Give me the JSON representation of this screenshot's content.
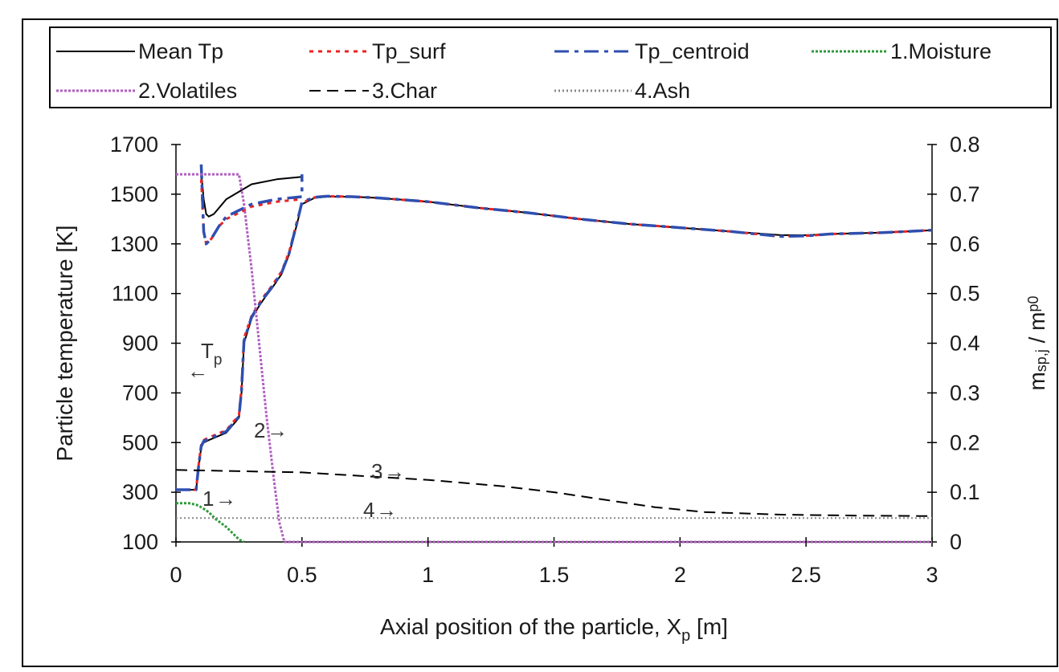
{
  "chart_data": {
    "type": "line",
    "xlabel": {
      "main": "Axial position of the particle, X",
      "sub": "p",
      "unit": " [m]"
    },
    "ylabel_left": "Particle temperature [K]",
    "ylabel_right": {
      "m1": "m",
      "sub1": "sp,j",
      "slash": " / ",
      "m2": "m",
      "sub2": "p0"
    },
    "xlim": [
      0,
      3
    ],
    "ylim_left": [
      100,
      1700
    ],
    "ylim_right": [
      0,
      0.8
    ],
    "x_ticks": [
      0,
      0.5,
      1,
      1.5,
      2,
      2.5,
      3
    ],
    "x_tick_labels": [
      "0",
      "0.5",
      "1",
      "1.5",
      "2",
      "2.5",
      "3"
    ],
    "y_left_ticks": [
      100,
      300,
      500,
      700,
      900,
      1100,
      1300,
      1500,
      1700
    ],
    "y_left_tick_labels": [
      "100",
      "300",
      "500",
      "700",
      "900",
      "1100",
      "1300",
      "1500",
      "1700"
    ],
    "y_right_ticks": [
      0,
      0.1,
      0.2,
      0.3,
      0.4,
      0.5,
      0.6,
      0.7,
      0.8
    ],
    "y_right_tick_labels": [
      "0",
      "0.1",
      "0.2",
      "0.3",
      "0.4",
      "0.5",
      "0.6",
      "0.7",
      "0.8"
    ],
    "legend_placement": "top",
    "legend": [
      {
        "label": "Mean Tp",
        "color": "#000000",
        "dash": "solid"
      },
      {
        "label": "Tp_surf",
        "color": "#ee2222",
        "dash": "dot"
      },
      {
        "label": "Tp_centroid",
        "color": "#2f4fb0",
        "dash": "dashdot"
      },
      {
        "label": "1.Moisture",
        "color": "#2e9a3a",
        "dash": "dense"
      },
      {
        "label": "2.Volatiles",
        "color": "#b05ec0",
        "dash": "dense"
      },
      {
        "label": "3.Char",
        "color": "#000000",
        "dash": "dash"
      },
      {
        "label": "4.Ash",
        "color": "#888888",
        "dash": "dotted"
      }
    ],
    "annotations": [
      {
        "text": "T",
        "sub": "p",
        "arrow": "←"
      },
      {
        "text": "1",
        "arrow": "→"
      },
      {
        "text": "2",
        "arrow": "→"
      },
      {
        "text": "3",
        "arrow": "→"
      },
      {
        "text": "4",
        "arrow": "→"
      }
    ],
    "series": [
      {
        "name": "Mean Tp",
        "axis": "left",
        "color": "#000000",
        "width": 2,
        "x": [
          0,
          0.08,
          0.09,
          0.1,
          0.11,
          0.13,
          0.2,
          0.25,
          0.26,
          0.27,
          0.3,
          0.33,
          0.35,
          0.38,
          0.42,
          0.45,
          0.48,
          0.5,
          0.55,
          0.6,
          0.7,
          0.8,
          1.0,
          1.2,
          1.4,
          1.6,
          1.8,
          2.0,
          2.2,
          2.4,
          2.5,
          2.6,
          2.8,
          2.9,
          3.0
        ],
        "y": [
          310,
          310,
          400,
          480,
          500,
          510,
          540,
          600,
          700,
          900,
          1000,
          1050,
          1080,
          1120,
          1180,
          1260,
          1380,
          1460,
          1485,
          1490,
          1490,
          1485,
          1470,
          1445,
          1425,
          1400,
          1380,
          1365,
          1350,
          1335,
          1335,
          1340,
          1345,
          1350,
          1355
        ]
      },
      {
        "name": "Mean Tp branch",
        "axis": "left",
        "color": "#000000",
        "width": 2,
        "x": [
          0.1,
          0.11,
          0.12,
          0.13,
          0.15,
          0.2,
          0.3,
          0.4,
          0.5
        ],
        "y": [
          1590,
          1480,
          1420,
          1410,
          1420,
          1480,
          1540,
          1560,
          1570
        ]
      },
      {
        "name": "Tp_surf",
        "axis": "left",
        "color": "#ee2222",
        "width": 3,
        "x": [
          0,
          0.08,
          0.09,
          0.1,
          0.11,
          0.13,
          0.2,
          0.25,
          0.26,
          0.27,
          0.3,
          0.33,
          0.35,
          0.38,
          0.42,
          0.45,
          0.48,
          0.5,
          0.55,
          0.6,
          0.7,
          0.8,
          1.0,
          1.2,
          1.4,
          1.6,
          1.8,
          2.0,
          2.2,
          2.4,
          2.5,
          2.6,
          2.8,
          2.9,
          3.0
        ],
        "y": [
          310,
          310,
          410,
          490,
          510,
          520,
          550,
          610,
          720,
          920,
          1010,
          1060,
          1090,
          1130,
          1190,
          1270,
          1390,
          1465,
          1487,
          1492,
          1490,
          1485,
          1470,
          1445,
          1425,
          1400,
          1380,
          1365,
          1350,
          1330,
          1332,
          1340,
          1345,
          1350,
          1355
        ]
      },
      {
        "name": "Tp_surf branch",
        "axis": "left",
        "color": "#ee2222",
        "width": 3,
        "x": [
          0.1,
          0.11,
          0.12,
          0.14,
          0.17,
          0.2,
          0.3,
          0.4,
          0.5
        ],
        "y": [
          1560,
          1350,
          1300,
          1320,
          1370,
          1400,
          1450,
          1470,
          1480
        ]
      },
      {
        "name": "Tp_centroid",
        "axis": "left",
        "color": "#2f4fb0",
        "width": 3.5,
        "x": [
          0,
          0.08,
          0.09,
          0.1,
          0.11,
          0.13,
          0.2,
          0.25,
          0.26,
          0.27,
          0.3,
          0.33,
          0.35,
          0.38,
          0.42,
          0.45,
          0.48,
          0.5,
          0.55,
          0.6,
          0.7,
          0.8,
          1.0,
          1.2,
          1.4,
          1.6,
          1.8,
          2.0,
          2.2,
          2.4,
          2.5,
          2.6,
          2.8,
          2.9,
          3.0
        ],
        "y": [
          310,
          310,
          405,
          485,
          505,
          515,
          545,
          605,
          710,
          910,
          1005,
          1055,
          1085,
          1125,
          1185,
          1265,
          1385,
          1468,
          1488,
          1492,
          1490,
          1485,
          1470,
          1445,
          1425,
          1400,
          1380,
          1365,
          1350,
          1330,
          1332,
          1340,
          1345,
          1350,
          1355
        ]
      },
      {
        "name": "Tp_centroid branch",
        "axis": "left",
        "color": "#2f4fb0",
        "width": 3.5,
        "x": [
          0.1,
          0.11,
          0.12,
          0.14,
          0.17,
          0.2,
          0.3,
          0.4,
          0.5,
          0.5
        ],
        "y": [
          1620,
          1350,
          1300,
          1320,
          1370,
          1410,
          1460,
          1480,
          1490,
          1580
        ]
      },
      {
        "name": "1.Moisture",
        "axis": "right",
        "color": "#2e9a3a",
        "width": 3,
        "x": [
          0,
          0.05,
          0.08,
          0.1,
          0.13,
          0.16,
          0.2,
          0.23,
          0.25,
          0.27
        ],
        "y": [
          0.078,
          0.078,
          0.075,
          0.07,
          0.06,
          0.045,
          0.03,
          0.015,
          0.005,
          0
        ]
      },
      {
        "name": "2.Volatiles",
        "axis": "right",
        "color": "#b05ec0",
        "width": 3,
        "x": [
          0,
          0.25,
          0.27,
          0.3,
          0.33,
          0.36,
          0.39,
          0.41,
          0.43,
          3.0
        ],
        "y": [
          0.74,
          0.74,
          0.68,
          0.55,
          0.4,
          0.25,
          0.12,
          0.04,
          0,
          0
        ]
      },
      {
        "name": "3.Char",
        "axis": "right",
        "color": "#000000",
        "width": 2,
        "x": [
          0,
          0.5,
          1.0,
          1.3,
          1.5,
          1.7,
          1.9,
          2.1,
          2.4,
          2.7,
          3.0
        ],
        "y": [
          0.145,
          0.14,
          0.125,
          0.112,
          0.1,
          0.085,
          0.07,
          0.06,
          0.055,
          0.053,
          0.052
        ]
      },
      {
        "name": "4.Ash",
        "axis": "right",
        "color": "#888888",
        "width": 2,
        "x": [
          0,
          3.0
        ],
        "y": [
          0.048,
          0.048
        ]
      }
    ]
  }
}
